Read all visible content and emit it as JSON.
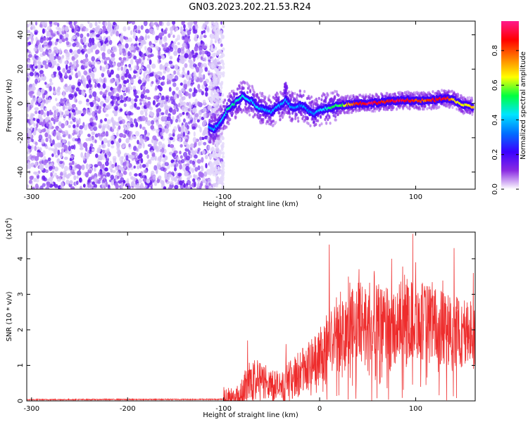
{
  "title": "GN03.2023.202.21.53.R24",
  "chart_data": [
    {
      "type": "heatmap",
      "xlabel": "Height of straight line (km)",
      "ylabel": "Frequency (Hz)",
      "xlim": [
        -305,
        162
      ],
      "ylim": [
        -50,
        48
      ],
      "xticks": [
        -300,
        -200,
        -100,
        0,
        100
      ],
      "yticks": [
        -40,
        -20,
        0,
        20,
        40
      ],
      "colorbar": {
        "label": "Normalized spectral amplitude",
        "range": [
          0,
          0.97
        ],
        "ticks": [
          0.0,
          0.2,
          0.4,
          0.6,
          0.8
        ],
        "colormap": [
          "#ffffff",
          "#8a2be2",
          "#3a00ff",
          "#0070ff",
          "#00e5ff",
          "#00ff40",
          "#ffff00",
          "#ff8000",
          "#ff0000",
          "#ff1a8c"
        ]
      },
      "noise_region": {
        "x_range": [
          -305,
          -102
        ],
        "freq_range": [
          -50,
          48
        ]
      },
      "ridge": {
        "x": [
          -115,
          -110,
          -105,
          -100,
          -95,
          -90,
          -85,
          -80,
          -75,
          -70,
          -65,
          -60,
          -55,
          -50,
          -45,
          -40,
          -35,
          -30,
          -25,
          -20,
          -15,
          -10,
          -5,
          0,
          5,
          10,
          15,
          20,
          25,
          30,
          40,
          50,
          60,
          70,
          80,
          90,
          100,
          110,
          120,
          130,
          140,
          150,
          160
        ],
        "y": [
          -14,
          -15,
          -12,
          -8,
          -3,
          -1,
          2,
          4,
          3,
          1,
          -2,
          -3,
          -4,
          -5,
          -2,
          -1,
          2,
          -2,
          -3,
          -1,
          -2,
          -5,
          -6,
          -4,
          -3,
          -3,
          -2,
          -1,
          -1,
          -0.5,
          0,
          0,
          0.5,
          1,
          1.5,
          2,
          1.5,
          1.5,
          2,
          3,
          2,
          -1,
          -2
        ],
        "amplitude": [
          0.35,
          0.4,
          0.38,
          0.45,
          0.5,
          0.5,
          0.5,
          0.45,
          0.45,
          0.4,
          0.42,
          0.4,
          0.4,
          0.38,
          0.4,
          0.4,
          0.42,
          0.38,
          0.38,
          0.35,
          0.38,
          0.35,
          0.35,
          0.4,
          0.45,
          0.5,
          0.55,
          0.55,
          0.6,
          0.75,
          0.85,
          0.95,
          0.9,
          0.85,
          0.95,
          0.9,
          0.85,
          0.8,
          0.9,
          0.95,
          0.7,
          0.65,
          0.7
        ]
      }
    },
    {
      "type": "line",
      "xlabel": "Height of straight line (km)",
      "ylabel": "SNR (10 * v/v)",
      "yscale_label": "(x10",
      "yscale_exp": "4",
      "yscale_close": ")",
      "xlim": [
        -305,
        162
      ],
      "ylim": [
        0,
        4.75
      ],
      "xticks": [
        -300,
        -200,
        -100,
        0,
        100
      ],
      "yticks": [
        0,
        1,
        2,
        3,
        4
      ],
      "color": "#ee2c2c",
      "series": [
        {
          "name": "SNR",
          "x": [
            -305,
            -100,
            -85,
            -80,
            -75,
            -70,
            -65,
            -60,
            -55,
            -50,
            -45,
            -40,
            -35,
            -30,
            -25,
            -20,
            -15,
            -10,
            -5,
            0,
            5,
            10,
            15,
            20,
            25,
            30,
            35,
            40,
            45,
            50,
            60,
            70,
            80,
            90,
            100,
            110,
            120,
            130,
            140,
            150,
            162
          ],
          "y": [
            0.02,
            0.03,
            0.08,
            0.3,
            0.5,
            0.65,
            0.6,
            0.5,
            0.6,
            0.5,
            0.4,
            0.35,
            0.5,
            0.6,
            0.7,
            0.8,
            0.9,
            1.0,
            1.1,
            1.2,
            1.4,
            1.6,
            1.75,
            1.9,
            2.0,
            2.1,
            2.15,
            2.2,
            2.25,
            2.25,
            2.2,
            2.1,
            2.15,
            2.3,
            2.25,
            2.2,
            2.1,
            2.0,
            1.95,
            1.9,
            1.85
          ],
          "peaks": [
            {
              "x": -75,
              "y": 1.7
            },
            {
              "x": -35,
              "y": 1.6
            },
            {
              "x": 10,
              "y": 4.4
            },
            {
              "x": 30,
              "y": 3.5
            },
            {
              "x": 75,
              "y": 4.0
            },
            {
              "x": 97,
              "y": 4.7
            },
            {
              "x": 100,
              "y": 3.9
            },
            {
              "x": 140,
              "y": 4.3
            },
            {
              "x": 160,
              "y": 3.6
            }
          ]
        }
      ]
    }
  ]
}
